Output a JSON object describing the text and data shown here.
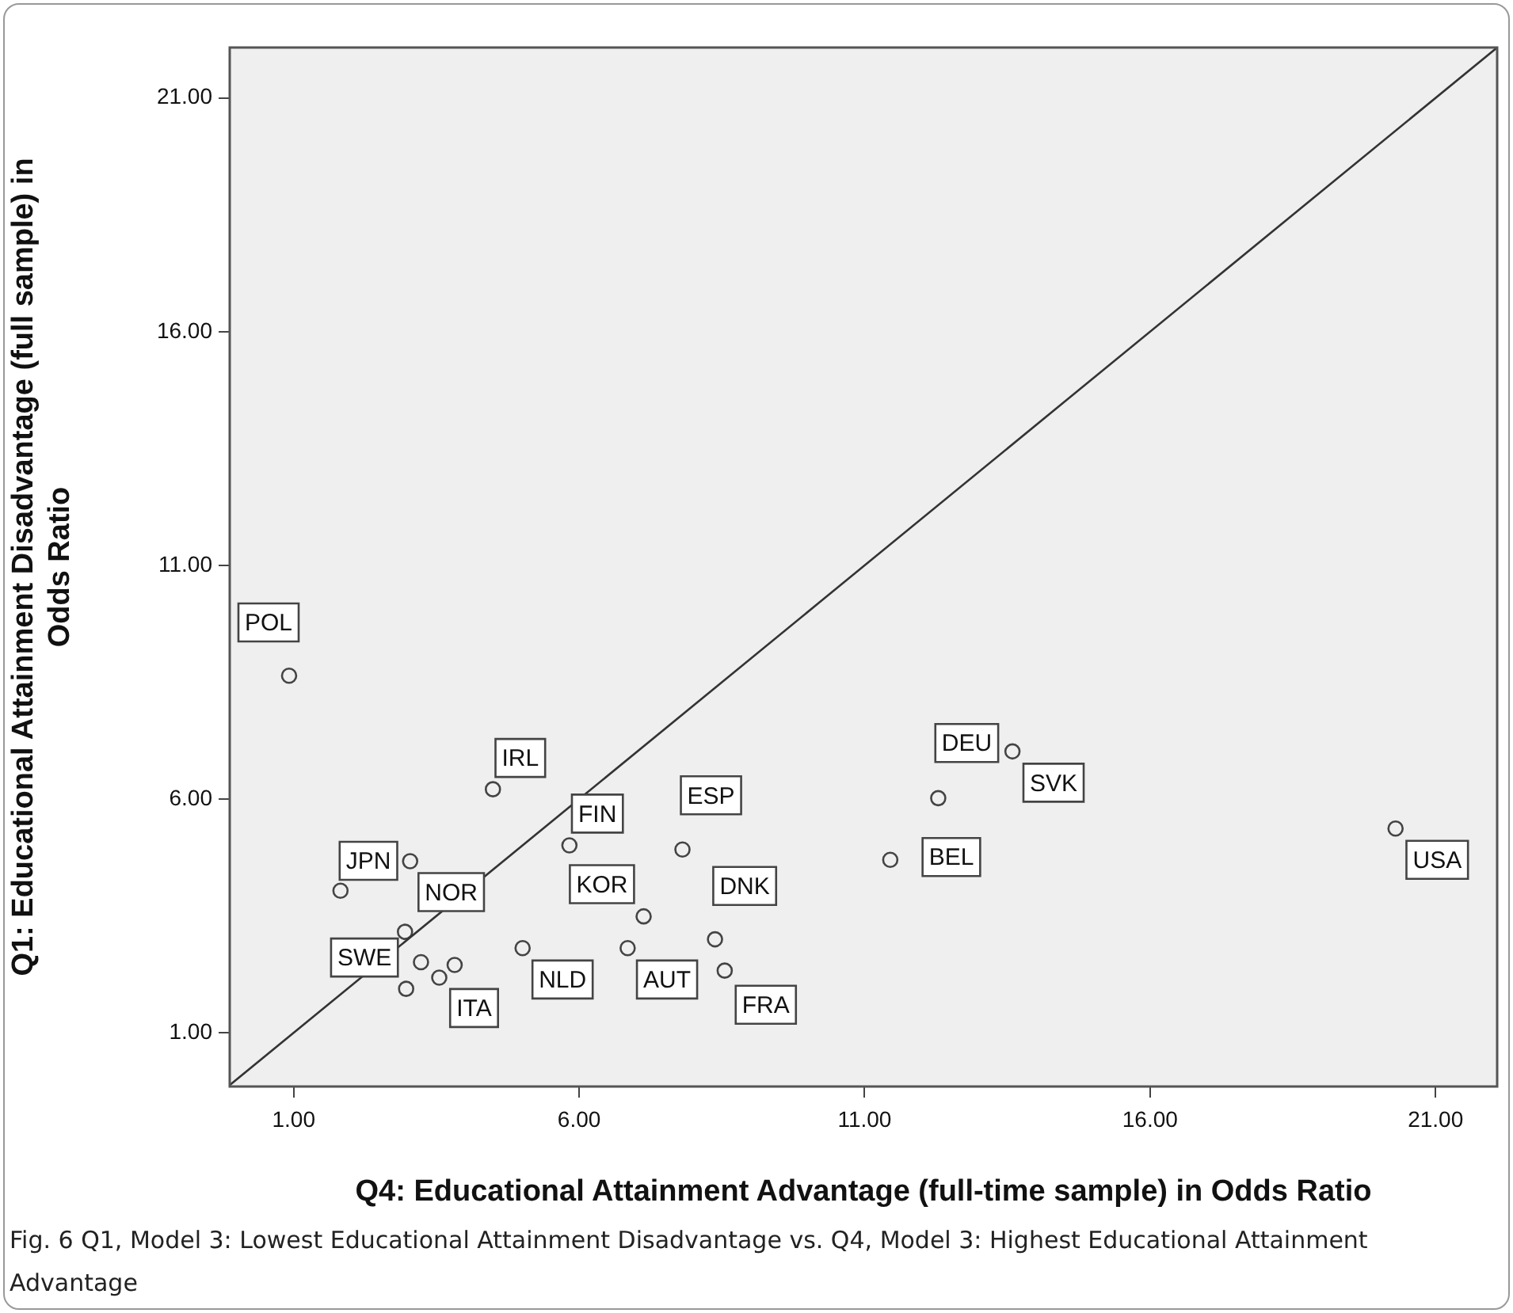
{
  "chart_data": {
    "type": "scatter",
    "xlabel": "Q4: Educational Attainment Advantage (full-time sample) in Odds Ratio",
    "ylabel": "Q1: Educational Attainment Disadvantage (full sample) in Odds Ratio",
    "xlim": [
      -0.12,
      22.08
    ],
    "ylim": [
      -0.15,
      22.08
    ],
    "xticks": [
      {
        "value": 1,
        "label": "1.00"
      },
      {
        "value": 6,
        "label": "6.00"
      },
      {
        "value": 11,
        "label": "11.00"
      },
      {
        "value": 16,
        "label": "16.00"
      },
      {
        "value": 21,
        "label": "21.00"
      }
    ],
    "yticks": [
      {
        "value": 1,
        "label": "1.00"
      },
      {
        "value": 6,
        "label": "6.00"
      },
      {
        "value": 11,
        "label": "11.00"
      },
      {
        "value": 16,
        "label": "16.00"
      },
      {
        "value": 21,
        "label": "21.00"
      }
    ],
    "grid": false,
    "legend": false,
    "marker": "circle",
    "series": [
      {
        "type": "scatter",
        "color": "#444444",
        "x": [
          0.92,
          4.49,
          5.83,
          7.81,
          1.82,
          3.04,
          7.13,
          2.95,
          5.01,
          6.85,
          8.38,
          3.23,
          3.82,
          3.55,
          2.97,
          8.55,
          13.59,
          12.29,
          11.45,
          20.3
        ],
        "values": [
          8.64,
          6.21,
          5.01,
          4.92,
          4.04,
          4.67,
          3.49,
          3.16,
          2.81,
          2.81,
          3.0,
          2.51,
          2.45,
          2.18,
          1.94,
          2.33,
          7.02,
          6.02,
          4.7,
          5.37
        ]
      },
      {
        "type": "line",
        "color": "#333333",
        "marker": "none",
        "x": [
          -0.12,
          22.08
        ],
        "values": [
          -0.12,
          22.08
        ]
      }
    ],
    "annotations": [
      {
        "text": "POL",
        "x": 0.56,
        "y": 9.78
      },
      {
        "text": "IRL",
        "x": 4.97,
        "y": 6.88
      },
      {
        "text": "FIN",
        "x": 6.32,
        "y": 5.69
      },
      {
        "text": "ESP",
        "x": 8.31,
        "y": 6.08
      },
      {
        "text": "JPN",
        "x": 2.31,
        "y": 4.68
      },
      {
        "text": "NOR",
        "x": 3.76,
        "y": 4.01
      },
      {
        "text": "KOR",
        "x": 6.4,
        "y": 4.18
      },
      {
        "text": "SWE",
        "x": 2.24,
        "y": 2.61
      },
      {
        "text": "NLD",
        "x": 5.71,
        "y": 2.14
      },
      {
        "text": "AUT",
        "x": 7.54,
        "y": 2.14
      },
      {
        "text": "ITA",
        "x": 4.16,
        "y": 1.53
      },
      {
        "text": "DNK",
        "x": 8.9,
        "y": 4.14
      },
      {
        "text": "FRA",
        "x": 9.27,
        "y": 1.6
      },
      {
        "text": "DEU",
        "x": 12.79,
        "y": 7.2
      },
      {
        "text": "SVK",
        "x": 14.31,
        "y": 6.35
      },
      {
        "text": "BEL",
        "x": 12.52,
        "y": 4.76
      },
      {
        "text": "USA",
        "x": 21.03,
        "y": 4.7
      },
      "Fig. 6  Q1, Model 3: Lowest Educational Attainment Disadvantage vs. Q4, Model 3: Highest Educational Attainment Advantage"
    ]
  }
}
